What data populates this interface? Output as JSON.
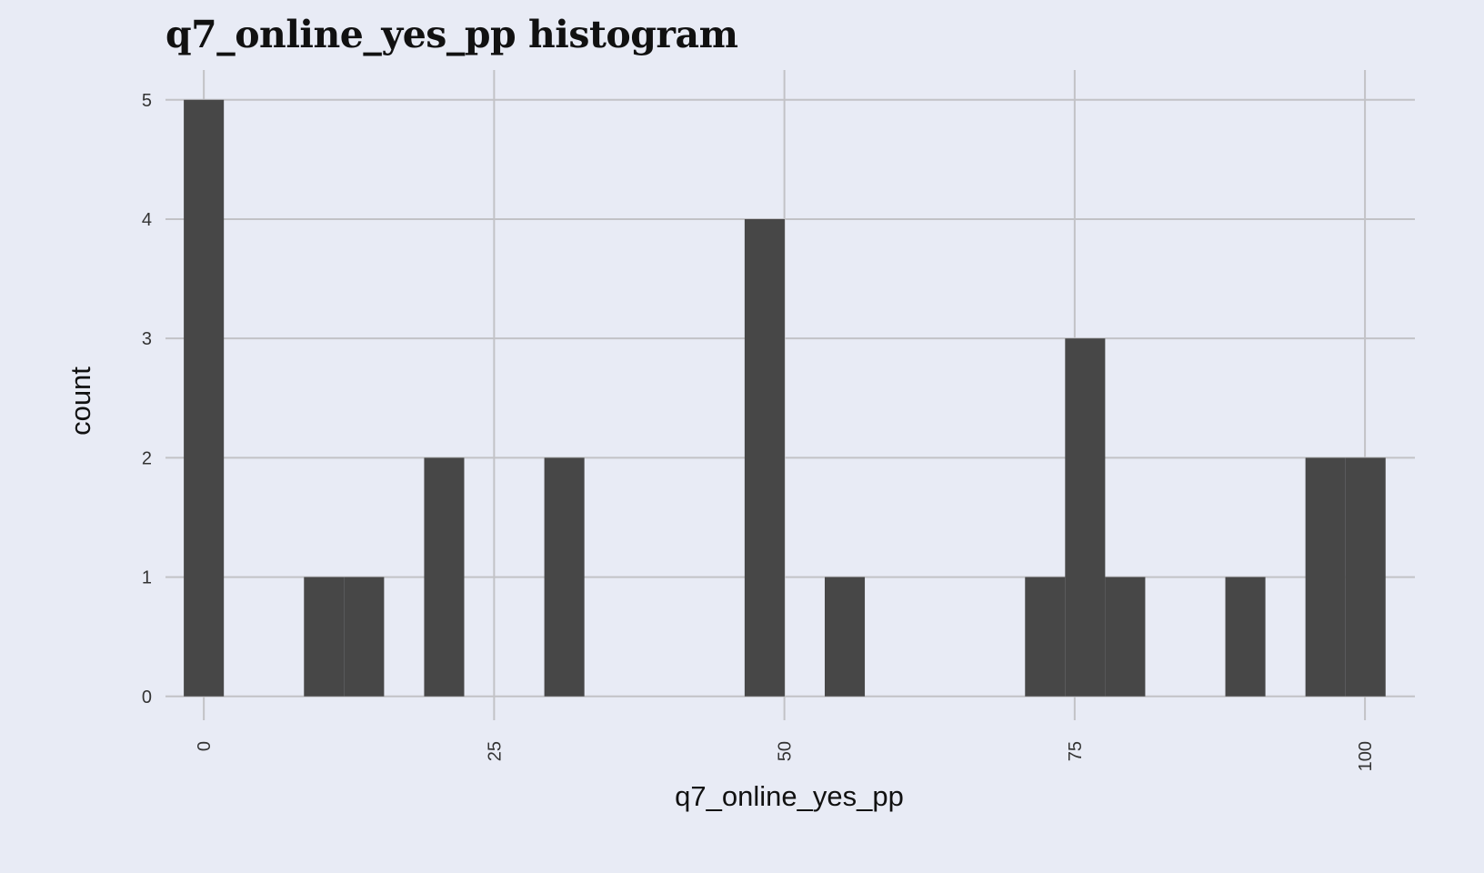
{
  "colors": {
    "panel_background": "#e8ebf5",
    "grid": "#c2c2c6",
    "bar_fill": "#474747"
  },
  "chart_data": {
    "type": "bar",
    "title": "q7_online_yes_pp histogram",
    "xlabel": "q7_online_yes_pp",
    "ylabel": "count",
    "grid": true,
    "legend": "none",
    "xlim": [
      -3.3,
      104.3
    ],
    "ylim": [
      -0.2,
      5.25
    ],
    "x_ticks": [
      0,
      25,
      50,
      75,
      100
    ],
    "y_ticks": [
      0,
      1,
      2,
      3,
      4,
      5
    ],
    "bin_width": 3.45,
    "bins": [
      {
        "x": 0.0,
        "count": 5
      },
      {
        "x": 3.45,
        "count": 0
      },
      {
        "x": 6.9,
        "count": 0
      },
      {
        "x": 10.35,
        "count": 1
      },
      {
        "x": 13.8,
        "count": 1
      },
      {
        "x": 17.25,
        "count": 0
      },
      {
        "x": 20.7,
        "count": 2
      },
      {
        "x": 24.15,
        "count": 0
      },
      {
        "x": 27.6,
        "count": 0
      },
      {
        "x": 31.05,
        "count": 2
      },
      {
        "x": 34.5,
        "count": 0
      },
      {
        "x": 37.95,
        "count": 0
      },
      {
        "x": 41.4,
        "count": 0
      },
      {
        "x": 44.85,
        "count": 0
      },
      {
        "x": 48.3,
        "count": 4
      },
      {
        "x": 51.75,
        "count": 0
      },
      {
        "x": 55.2,
        "count": 1
      },
      {
        "x": 58.65,
        "count": 0
      },
      {
        "x": 62.1,
        "count": 0
      },
      {
        "x": 65.55,
        "count": 0
      },
      {
        "x": 69.0,
        "count": 0
      },
      {
        "x": 72.45,
        "count": 1
      },
      {
        "x": 75.9,
        "count": 3
      },
      {
        "x": 79.35,
        "count": 1
      },
      {
        "x": 82.8,
        "count": 0
      },
      {
        "x": 86.25,
        "count": 0
      },
      {
        "x": 89.7,
        "count": 1
      },
      {
        "x": 93.15,
        "count": 0
      },
      {
        "x": 96.6,
        "count": 2
      },
      {
        "x": 100.05,
        "count": 2
      }
    ]
  }
}
